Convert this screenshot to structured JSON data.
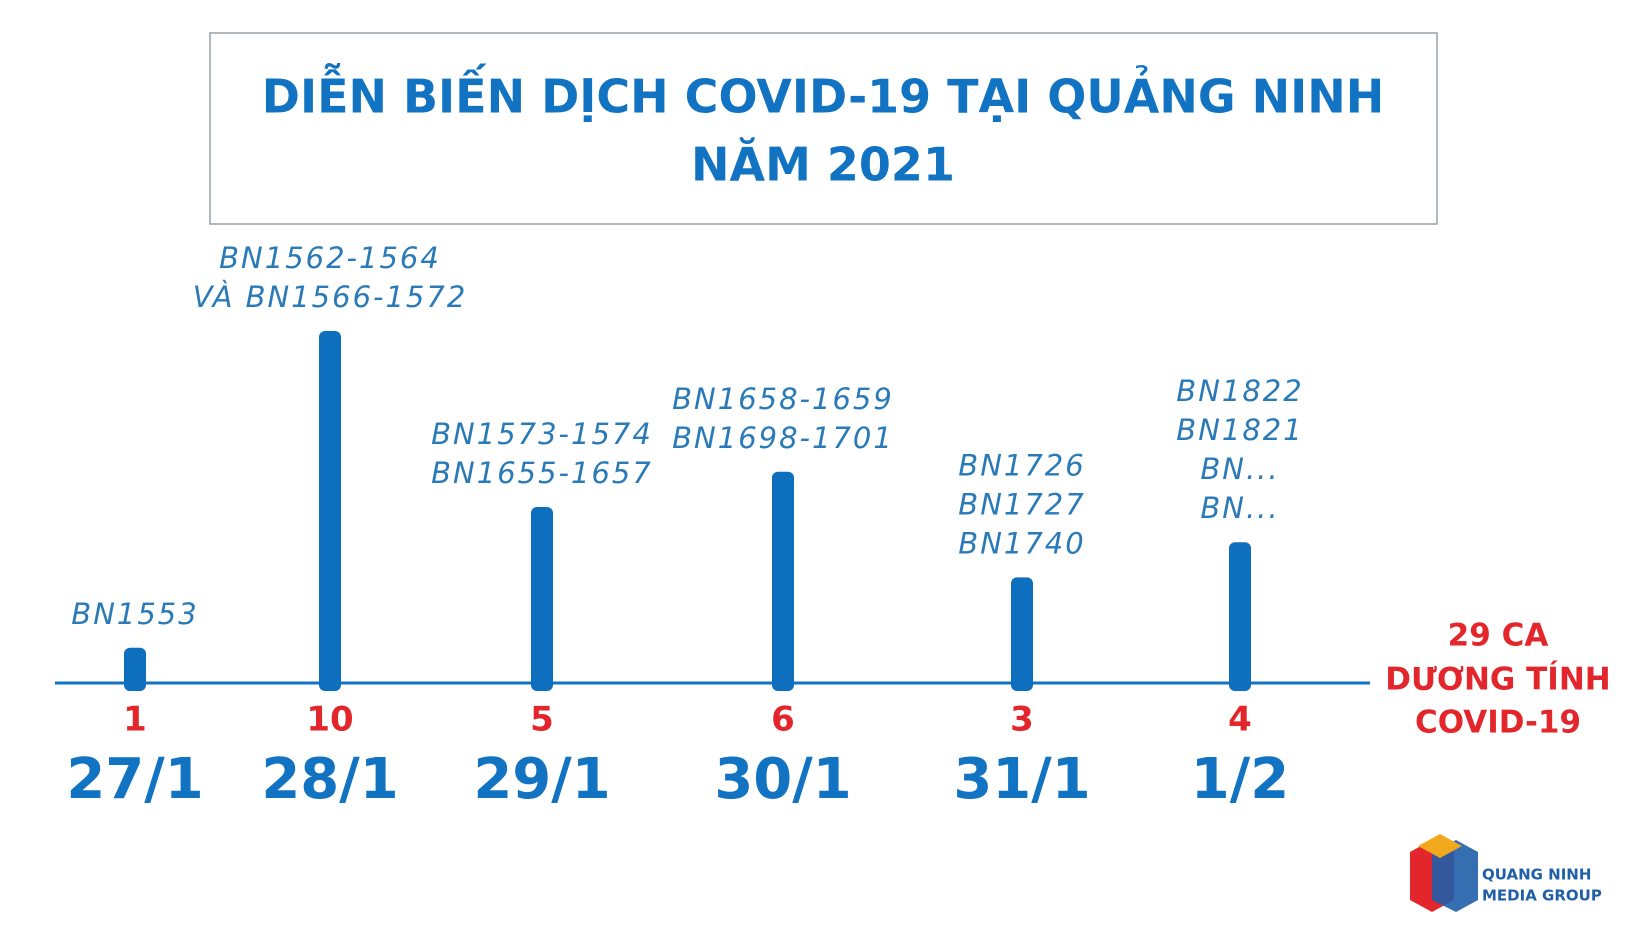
{
  "chart_data": {
    "type": "bar",
    "title": [
      "DIỄN BIẾN DỊCH COVID-19 TẠI QUẢNG NINH",
      "NĂM 2021"
    ],
    "categories": [
      "27/1",
      "28/1",
      "29/1",
      "30/1",
      "31/1",
      "1/2"
    ],
    "values": [
      1,
      10,
      5,
      6,
      3,
      4
    ],
    "color": "#0f6fbf",
    "annotations": [
      [
        "BN1553"
      ],
      [
        "BN1562-1564",
        "VÀ  BN1566-1572"
      ],
      [
        "BN1573-1574",
        "BN1655-1657"
      ],
      [
        "BN1658-1659",
        "BN1698-1701"
      ],
      [
        "BN1726",
        "BN1727",
        "BN1740"
      ],
      [
        "BN1822",
        "BN1821",
        "BN...",
        "BN..."
      ]
    ],
    "total": [
      "29 CA",
      "DƯƠNG TÍNH",
      "COVID-19"
    ]
  },
  "logo": [
    "QUANG NINH",
    "MEDIA GROUP"
  ]
}
